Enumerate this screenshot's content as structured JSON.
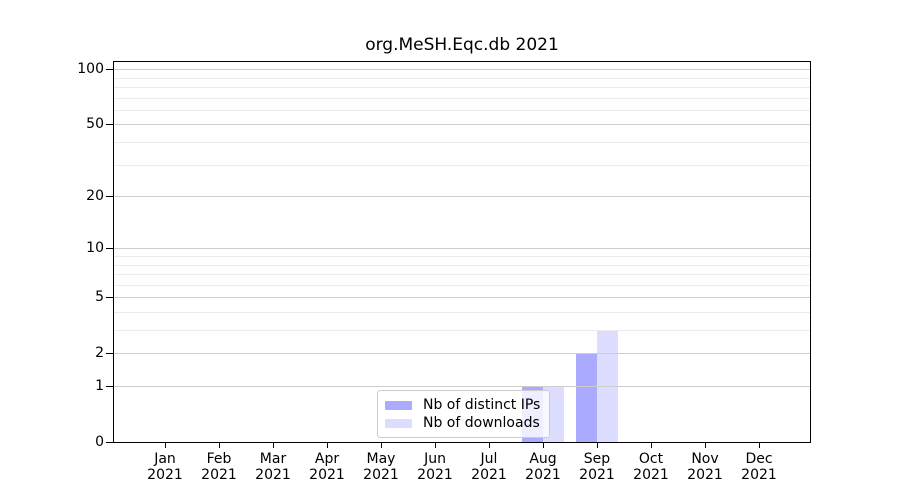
{
  "chart_data": {
    "type": "bar",
    "title": "org.MeSH.Eqc.db 2021",
    "categories": [
      "Jan",
      "Feb",
      "Mar",
      "Apr",
      "May",
      "Jun",
      "Jul",
      "Aug",
      "Sep",
      "Oct",
      "Nov",
      "Dec"
    ],
    "year_label": "2021",
    "series": [
      {
        "name": "Nb of distinct IPs",
        "color": "#aaaaff",
        "values": [
          0,
          0,
          0,
          0,
          0,
          0,
          0,
          1,
          2,
          0,
          0,
          0
        ]
      },
      {
        "name": "Nb of downloads",
        "color": "#ddddff",
        "values": [
          0,
          0,
          0,
          0,
          0,
          0,
          0,
          1,
          3,
          0,
          0,
          0
        ]
      }
    ],
    "xlabel": "",
    "ylabel": "",
    "yscale": "log1p",
    "ylim": [
      0,
      112
    ],
    "yticks": [
      0,
      1,
      2,
      5,
      10,
      20,
      50,
      100
    ],
    "minor_grid_values": [
      3,
      4,
      6,
      7,
      8,
      9,
      30,
      40,
      60,
      70,
      80,
      90
    ],
    "grid": true,
    "legend_position": "lower-center-inside"
  },
  "colors": {
    "bar_distinct_ips": "#aaaaff",
    "bar_downloads": "#ddddff",
    "major_grid": "#cdcdcd",
    "minor_grid": "#ebebeb",
    "spine": "#000000",
    "legend_border": "#cccccc",
    "background": "#ffffff"
  }
}
